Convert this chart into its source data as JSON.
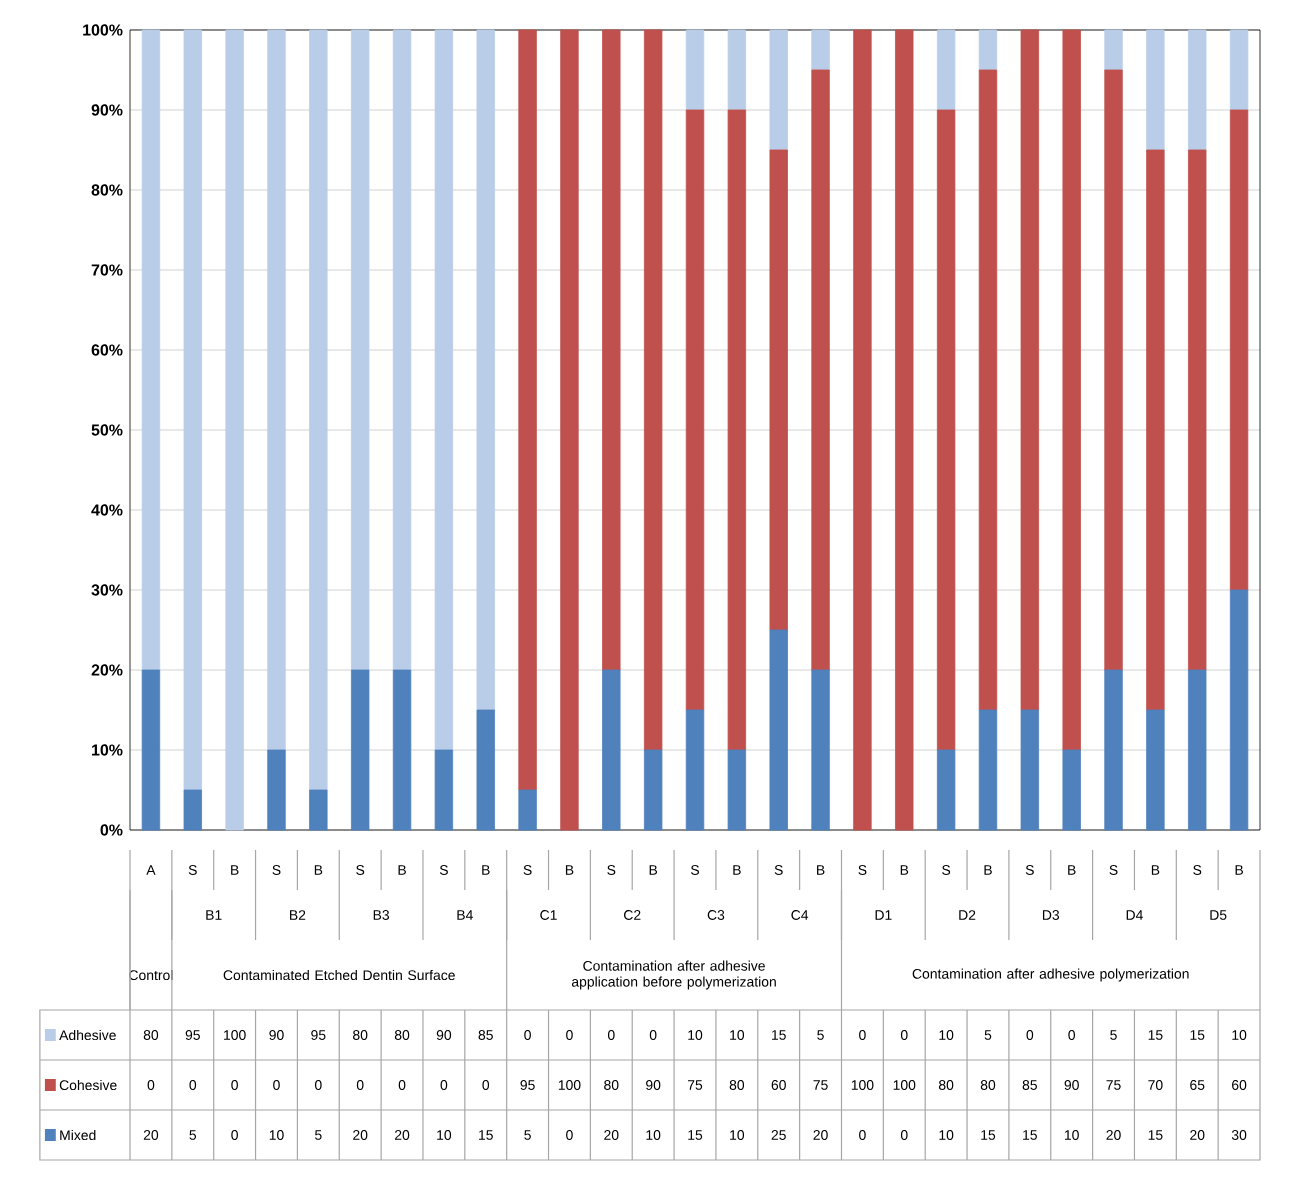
{
  "chart_data": {
    "type": "bar",
    "stacked": true,
    "categories": [
      "A",
      "S",
      "B",
      "S",
      "B",
      "S",
      "B",
      "S",
      "B",
      "S",
      "B",
      "S",
      "B",
      "S",
      "B",
      "S",
      "B",
      "S",
      "B",
      "S",
      "B",
      "S",
      "B",
      "S",
      "B",
      "S",
      "B"
    ],
    "series": [
      {
        "name": "Mixed",
        "color": "#4f81bd",
        "values": [
          20,
          5,
          0,
          10,
          5,
          20,
          20,
          10,
          15,
          5,
          0,
          20,
          10,
          15,
          10,
          25,
          20,
          0,
          0,
          10,
          15,
          15,
          10,
          20,
          15,
          20,
          30
        ]
      },
      {
        "name": "Cohesive",
        "color": "#c0504d",
        "values": [
          0,
          0,
          0,
          0,
          0,
          0,
          0,
          0,
          0,
          95,
          100,
          80,
          90,
          75,
          80,
          60,
          75,
          100,
          100,
          80,
          80,
          85,
          90,
          75,
          70,
          65,
          60
        ]
      },
      {
        "name": "Adhesive",
        "color": "#b9cde8",
        "values": [
          80,
          95,
          100,
          90,
          95,
          80,
          80,
          90,
          85,
          0,
          0,
          0,
          0,
          10,
          10,
          15,
          5,
          0,
          0,
          10,
          5,
          0,
          0,
          5,
          15,
          15,
          10
        ]
      }
    ],
    "ylim": [
      0,
      100
    ],
    "yticks": [
      {
        "value": 0,
        "label": "0%"
      },
      {
        "value": 10,
        "label": "10%"
      },
      {
        "value": 20,
        "label": "20%"
      },
      {
        "value": 30,
        "label": "30%"
      },
      {
        "value": 40,
        "label": "40%"
      },
      {
        "value": 50,
        "label": "50%"
      },
      {
        "value": 60,
        "label": "60%"
      },
      {
        "value": 70,
        "label": "70%"
      },
      {
        "value": 80,
        "label": "80%"
      },
      {
        "value": 90,
        "label": "90%"
      },
      {
        "value": 100,
        "label": "100%"
      }
    ],
    "grid": "y",
    "legend": "bottom",
    "data_labels": true,
    "annotations": [
      "Control",
      "B1",
      "B2",
      "B3",
      "B4",
      "Contaminated Etched Dentin Surface",
      "C1",
      "C2",
      "C3",
      "C4",
      "Contamination after adhesive application before polymerization",
      "D1",
      "D2",
      "D3",
      "D4",
      "D5",
      "Contamination after adhesive polymerization"
    ]
  }
}
